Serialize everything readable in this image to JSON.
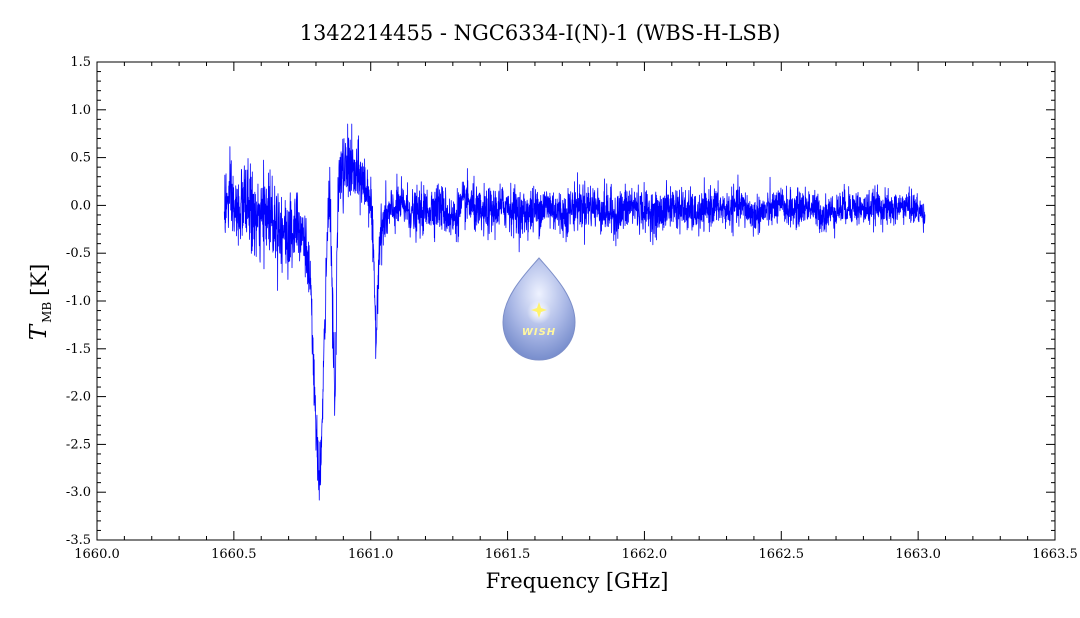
{
  "chart_data": {
    "type": "line",
    "title": "1342214455 - NGC6334-I(N)-1 (WBS-H-LSB)",
    "xlabel": "Frequency [GHz]",
    "ylabel": {
      "symbol": "T",
      "subscript": "MB",
      "unit": "[K]"
    },
    "xlim": [
      1660.0,
      1663.5
    ],
    "ylim": [
      -3.5,
      1.5
    ],
    "x_ticks": [
      1660.0,
      1660.5,
      1661.0,
      1661.5,
      1662.0,
      1662.5,
      1663.0,
      1663.5
    ],
    "x_tick_labels": [
      "1660.0",
      "1660.5",
      "1661.0",
      "1661.5",
      "1662.0",
      "1662.5",
      "1663.0",
      "1663.5"
    ],
    "y_ticks": [
      -3.5,
      -3.0,
      -2.5,
      -2.0,
      -1.5,
      -1.0,
      -0.5,
      0.0,
      0.5,
      1.0,
      1.5
    ],
    "y_tick_labels": [
      "-3.5",
      "-3.0",
      "-2.5",
      "-2.0",
      "-1.5",
      "-1.0",
      "-0.5",
      "0.0",
      "0.5",
      "1.0",
      "1.5"
    ],
    "grid": false,
    "series": [
      {
        "color": "#0000ff",
        "x": [
          1660.465,
          1660.49,
          1660.51,
          1660.53,
          1660.55,
          1660.57,
          1660.59,
          1660.61,
          1660.63,
          1660.65,
          1660.67,
          1660.69,
          1660.71,
          1660.73,
          1660.75,
          1660.76,
          1660.77,
          1660.78,
          1660.79,
          1660.8,
          1660.81,
          1660.82,
          1660.83,
          1660.84,
          1660.85,
          1660.86,
          1660.87,
          1660.88,
          1660.89,
          1660.9,
          1660.92,
          1660.94,
          1660.96,
          1660.98,
          1661.0,
          1661.01,
          1661.02,
          1661.03,
          1661.05,
          1661.08,
          1661.12,
          1661.16,
          1661.2,
          1661.25,
          1661.3,
          1661.35,
          1661.4,
          1661.45,
          1661.5,
          1661.55,
          1661.6,
          1661.65,
          1661.7,
          1661.75,
          1661.8,
          1661.85,
          1661.9,
          1661.95,
          1662.0,
          1662.05,
          1662.1,
          1662.15,
          1662.2,
          1662.25,
          1662.3,
          1662.35,
          1662.4,
          1662.45,
          1662.5,
          1662.55,
          1662.6,
          1662.65,
          1662.7,
          1662.75,
          1662.8,
          1662.85,
          1662.9,
          1662.95,
          1663.0,
          1663.025
        ],
        "y": [
          0.0,
          0.05,
          -0.1,
          0.0,
          0.05,
          -0.1,
          -0.2,
          -0.1,
          -0.05,
          -0.15,
          -0.2,
          -0.35,
          -0.3,
          -0.1,
          -0.25,
          -0.4,
          -0.6,
          -0.9,
          -1.6,
          -2.4,
          -2.8,
          -2.6,
          -1.5,
          -0.5,
          0.3,
          -1.0,
          -2.2,
          0.1,
          0.35,
          0.3,
          0.45,
          0.3,
          0.3,
          0.2,
          0.1,
          -0.6,
          -1.4,
          -0.4,
          -0.15,
          -0.05,
          0.0,
          -0.1,
          -0.05,
          0.0,
          -0.15,
          0.05,
          -0.1,
          -0.05,
          0.0,
          -0.1,
          -0.05,
          0.0,
          -0.1,
          0.0,
          0.0,
          -0.05,
          -0.1,
          0.0,
          -0.05,
          -0.1,
          0.0,
          -0.05,
          -0.1,
          0.0,
          -0.05,
          0.0,
          -0.1,
          -0.05,
          0.0,
          -0.05,
          0.0,
          -0.1,
          -0.05,
          0.0,
          -0.05,
          0.0,
          -0.05,
          0.0,
          -0.05,
          -0.1
        ],
        "noise": [
          0.35,
          0.35,
          0.35,
          0.35,
          0.35,
          0.4,
          0.35,
          0.4,
          0.4,
          0.4,
          0.4,
          0.4,
          0.4,
          0.4,
          0.35,
          0.3,
          0.3,
          0.3,
          0.25,
          0.25,
          0.3,
          0.3,
          0.3,
          0.3,
          0.3,
          0.3,
          0.3,
          0.3,
          0.35,
          0.35,
          0.35,
          0.3,
          0.3,
          0.3,
          0.25,
          0.25,
          0.25,
          0.25,
          0.25,
          0.22,
          0.22,
          0.22,
          0.22,
          0.22,
          0.22,
          0.22,
          0.22,
          0.22,
          0.22,
          0.22,
          0.22,
          0.22,
          0.22,
          0.22,
          0.22,
          0.22,
          0.22,
          0.22,
          0.2,
          0.2,
          0.2,
          0.2,
          0.18,
          0.18,
          0.18,
          0.18,
          0.18,
          0.17,
          0.17,
          0.17,
          0.17,
          0.17,
          0.17,
          0.17,
          0.16,
          0.16,
          0.16,
          0.15,
          0.15,
          0.15
        ]
      }
    ],
    "logo": {
      "text": "WISH",
      "colors": {
        "drop_top": "#e6ecff",
        "drop_bottom": "#6f86c8",
        "star": "#fff36b"
      }
    }
  }
}
